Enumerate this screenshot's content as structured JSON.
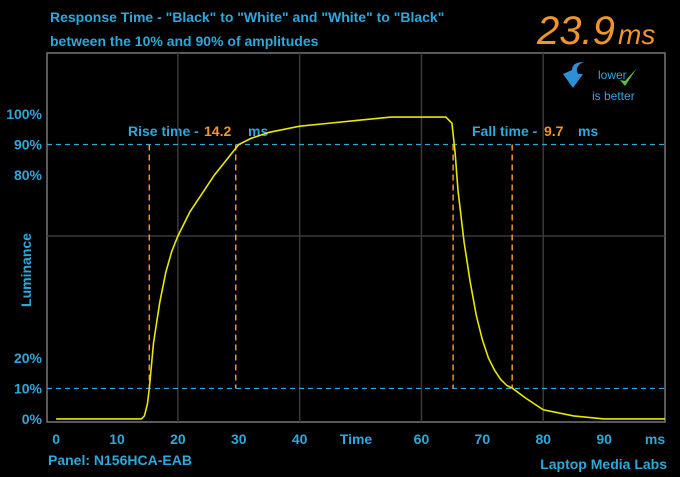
{
  "chart_data": {
    "type": "line",
    "title": "Response Time - \"Black\" to \"White\" and \"White\" to \"Black\"",
    "subtitle": "between the 10% and 90% of amplitudes",
    "total": 23.9,
    "total_unit": "ms",
    "badge": [
      "lower",
      "is better"
    ],
    "x_label": "Time",
    "x_unit": "ms",
    "y_label": "Luminance",
    "panel": "Panel: N156HCA-EAB",
    "credit": "Laptop Media Labs",
    "rise_label": "Rise time -",
    "rise": 14.2,
    "rise_unit": "ms",
    "fall_label": "Fall time -",
    "fall": 9.7,
    "fall_unit": "ms",
    "markers": [
      15.3,
      29.5,
      65.2,
      74.9
    ],
    "color": "#e8e800",
    "x": [
      0,
      13,
      14,
      14.5,
      15,
      15.3,
      16,
      17,
      18,
      19,
      20,
      22,
      24,
      26,
      28,
      30,
      32,
      35,
      40,
      45,
      50,
      55,
      60,
      64,
      65,
      65.5,
      66,
      67,
      68,
      69,
      70,
      71,
      72,
      73,
      74,
      75,
      77,
      80,
      85,
      90,
      100
    ],
    "values": [
      0,
      0,
      0,
      1,
      5,
      10,
      25,
      38,
      48,
      55,
      60,
      68,
      74,
      80,
      85,
      90,
      92,
      94,
      96,
      97,
      98,
      99,
      99,
      99,
      97,
      88,
      75,
      58,
      45,
      34,
      26,
      20,
      16,
      13,
      11,
      10,
      7,
      3,
      1,
      0,
      0
    ],
    "xlim": [
      -1.5,
      100
    ],
    "ylim": [
      -1,
      120
    ],
    "xticks": [
      0,
      10,
      20,
      30,
      40,
      60,
      70,
      80,
      90
    ],
    "yticks": [
      {
        "value": 0,
        "label": "0%"
      },
      {
        "value": 10,
        "label": "10%"
      },
      {
        "value": 20,
        "label": "20%"
      },
      {
        "value": 80,
        "label": "80%"
      },
      {
        "value": 90,
        "label": "90%"
      },
      {
        "value": 100,
        "label": "100%"
      }
    ],
    "xgrid": [
      20,
      40,
      60,
      80
    ],
    "ygrid": [
      60
    ],
    "threshold_lines": [
      10,
      90
    ]
  }
}
